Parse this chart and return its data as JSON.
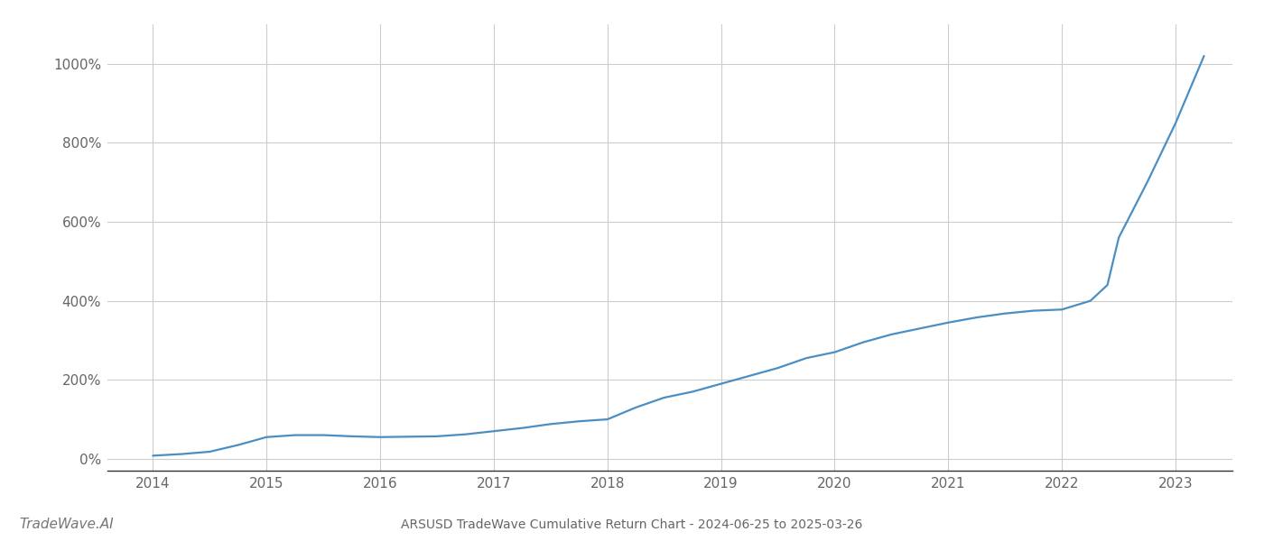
{
  "title": "ARSUSD TradeWave Cumulative Return Chart - 2024-06-25 to 2025-03-26",
  "watermark": "TradeWave.AI",
  "line_color": "#4a8fc4",
  "background_color": "#ffffff",
  "grid_color": "#cccccc",
  "x_years": [
    2014.0,
    2014.25,
    2014.5,
    2014.75,
    2015.0,
    2015.25,
    2015.5,
    2015.75,
    2016.0,
    2016.25,
    2016.5,
    2016.75,
    2017.0,
    2017.25,
    2017.5,
    2017.75,
    2018.0,
    2018.25,
    2018.5,
    2018.75,
    2019.0,
    2019.25,
    2019.5,
    2019.75,
    2020.0,
    2020.25,
    2020.5,
    2020.75,
    2021.0,
    2021.25,
    2021.5,
    2021.75,
    2022.0,
    2022.25,
    2022.4,
    2022.5,
    2022.75,
    2023.0,
    2023.25
  ],
  "y_values": [
    8,
    12,
    18,
    35,
    55,
    60,
    60,
    57,
    55,
    56,
    57,
    62,
    70,
    78,
    88,
    95,
    100,
    130,
    155,
    170,
    190,
    210,
    230,
    255,
    270,
    295,
    315,
    330,
    345,
    358,
    368,
    375,
    378,
    400,
    440,
    560,
    700,
    850,
    1020
  ],
  "xlim": [
    2013.6,
    2023.5
  ],
  "ylim": [
    -30,
    1100
  ],
  "yticks": [
    0,
    200,
    400,
    600,
    800,
    1000
  ],
  "xticks": [
    2014,
    2015,
    2016,
    2017,
    2018,
    2019,
    2020,
    2021,
    2022,
    2023
  ],
  "tick_fontsize": 11,
  "title_fontsize": 10,
  "watermark_fontsize": 11,
  "line_width": 1.6
}
